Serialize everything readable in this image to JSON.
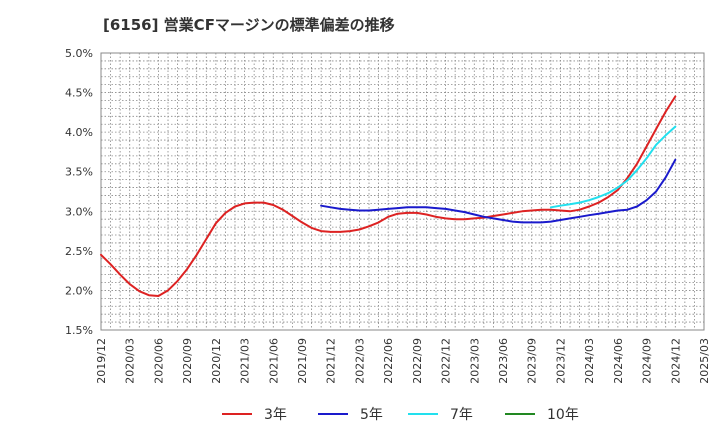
{
  "chart_data": {
    "type": "line",
    "title": "[6156]  営業CFマージンの標準偏差の推移",
    "ylim": [
      1.5,
      5.0
    ],
    "y_ticks": [
      "1.5%",
      "2.0%",
      "2.5%",
      "3.0%",
      "3.5%",
      "4.0%",
      "4.5%",
      "5.0%"
    ],
    "x_ticks": [
      "2019/12",
      "2020/03",
      "2020/06",
      "2020/09",
      "2020/12",
      "2021/03",
      "2021/06",
      "2021/09",
      "2021/12",
      "2022/03",
      "2022/06",
      "2022/09",
      "2022/12",
      "2023/03",
      "2023/06",
      "2023/09",
      "2023/12",
      "2024/03",
      "2024/06",
      "2024/09",
      "2024/12",
      "2025/03"
    ],
    "grid": true,
    "legend_position": "bottom",
    "series": [
      {
        "name": "3年",
        "color": "#dd2222",
        "points": [
          [
            "2019/12",
            2.45
          ],
          [
            "2020/01",
            2.33
          ],
          [
            "2020/02",
            2.2
          ],
          [
            "2020/03",
            2.08
          ],
          [
            "2020/04",
            1.99
          ],
          [
            "2020/05",
            1.94
          ],
          [
            "2020/06",
            1.93
          ],
          [
            "2020/07",
            2.0
          ],
          [
            "2020/08",
            2.12
          ],
          [
            "2020/09",
            2.27
          ],
          [
            "2020/10",
            2.45
          ],
          [
            "2020/11",
            2.65
          ],
          [
            "2020/12",
            2.85
          ],
          [
            "2021/01",
            2.98
          ],
          [
            "2021/02",
            3.06
          ],
          [
            "2021/03",
            3.1
          ],
          [
            "2021/04",
            3.11
          ],
          [
            "2021/05",
            3.11
          ],
          [
            "2021/06",
            3.08
          ],
          [
            "2021/07",
            3.02
          ],
          [
            "2021/08",
            2.94
          ],
          [
            "2021/09",
            2.86
          ],
          [
            "2021/10",
            2.79
          ],
          [
            "2021/11",
            2.75
          ],
          [
            "2021/12",
            2.74
          ],
          [
            "2022/01",
            2.74
          ],
          [
            "2022/02",
            2.75
          ],
          [
            "2022/03",
            2.77
          ],
          [
            "2022/04",
            2.81
          ],
          [
            "2022/05",
            2.86
          ],
          [
            "2022/06",
            2.93
          ],
          [
            "2022/07",
            2.97
          ],
          [
            "2022/08",
            2.98
          ],
          [
            "2022/09",
            2.98
          ],
          [
            "2022/10",
            2.96
          ],
          [
            "2022/11",
            2.93
          ],
          [
            "2022/12",
            2.91
          ],
          [
            "2023/01",
            2.9
          ],
          [
            "2023/02",
            2.9
          ],
          [
            "2023/03",
            2.91
          ],
          [
            "2023/04",
            2.92
          ],
          [
            "2023/05",
            2.94
          ],
          [
            "2023/06",
            2.96
          ],
          [
            "2023/07",
            2.98
          ],
          [
            "2023/08",
            3.0
          ],
          [
            "2023/09",
            3.01
          ],
          [
            "2023/10",
            3.02
          ],
          [
            "2023/11",
            3.02
          ],
          [
            "2023/12",
            3.01
          ],
          [
            "2024/01",
            3.0
          ],
          [
            "2024/02",
            3.02
          ],
          [
            "2024/03",
            3.06
          ],
          [
            "2024/04",
            3.11
          ],
          [
            "2024/05",
            3.18
          ],
          [
            "2024/06",
            3.27
          ],
          [
            "2024/07",
            3.42
          ],
          [
            "2024/08",
            3.6
          ],
          [
            "2024/09",
            3.82
          ],
          [
            "2024/10",
            4.04
          ],
          [
            "2024/11",
            4.26
          ],
          [
            "2024/12",
            4.45
          ]
        ]
      },
      {
        "name": "5年",
        "color": "#1a1acc",
        "points": [
          [
            "2021/11",
            3.07
          ],
          [
            "2021/12",
            3.05
          ],
          [
            "2022/01",
            3.03
          ],
          [
            "2022/02",
            3.02
          ],
          [
            "2022/03",
            3.01
          ],
          [
            "2022/04",
            3.01
          ],
          [
            "2022/05",
            3.02
          ],
          [
            "2022/06",
            3.03
          ],
          [
            "2022/07",
            3.04
          ],
          [
            "2022/08",
            3.05
          ],
          [
            "2022/09",
            3.05
          ],
          [
            "2022/10",
            3.05
          ],
          [
            "2022/11",
            3.04
          ],
          [
            "2022/12",
            3.03
          ],
          [
            "2023/01",
            3.01
          ],
          [
            "2023/02",
            2.99
          ],
          [
            "2023/03",
            2.96
          ],
          [
            "2023/04",
            2.93
          ],
          [
            "2023/05",
            2.91
          ],
          [
            "2023/06",
            2.89
          ],
          [
            "2023/07",
            2.87
          ],
          [
            "2023/08",
            2.86
          ],
          [
            "2023/09",
            2.86
          ],
          [
            "2023/10",
            2.86
          ],
          [
            "2023/11",
            2.87
          ],
          [
            "2023/12",
            2.89
          ],
          [
            "2024/01",
            2.91
          ],
          [
            "2024/02",
            2.93
          ],
          [
            "2024/03",
            2.95
          ],
          [
            "2024/04",
            2.97
          ],
          [
            "2024/05",
            2.99
          ],
          [
            "2024/06",
            3.01
          ],
          [
            "2024/07",
            3.02
          ],
          [
            "2024/08",
            3.06
          ],
          [
            "2024/09",
            3.14
          ],
          [
            "2024/10",
            3.25
          ],
          [
            "2024/11",
            3.43
          ],
          [
            "2024/12",
            3.65
          ]
        ]
      },
      {
        "name": "7年",
        "color": "#22e0ee",
        "points": [
          [
            "2023/11",
            3.05
          ],
          [
            "2023/12",
            3.07
          ],
          [
            "2024/01",
            3.09
          ],
          [
            "2024/02",
            3.11
          ],
          [
            "2024/03",
            3.14
          ],
          [
            "2024/04",
            3.18
          ],
          [
            "2024/05",
            3.23
          ],
          [
            "2024/06",
            3.3
          ],
          [
            "2024/07",
            3.39
          ],
          [
            "2024/08",
            3.52
          ],
          [
            "2024/09",
            3.67
          ],
          [
            "2024/10",
            3.84
          ],
          [
            "2024/11",
            3.96
          ],
          [
            "2024/12",
            4.07
          ]
        ]
      },
      {
        "name": "10年",
        "color": "#228822",
        "points": []
      }
    ]
  }
}
